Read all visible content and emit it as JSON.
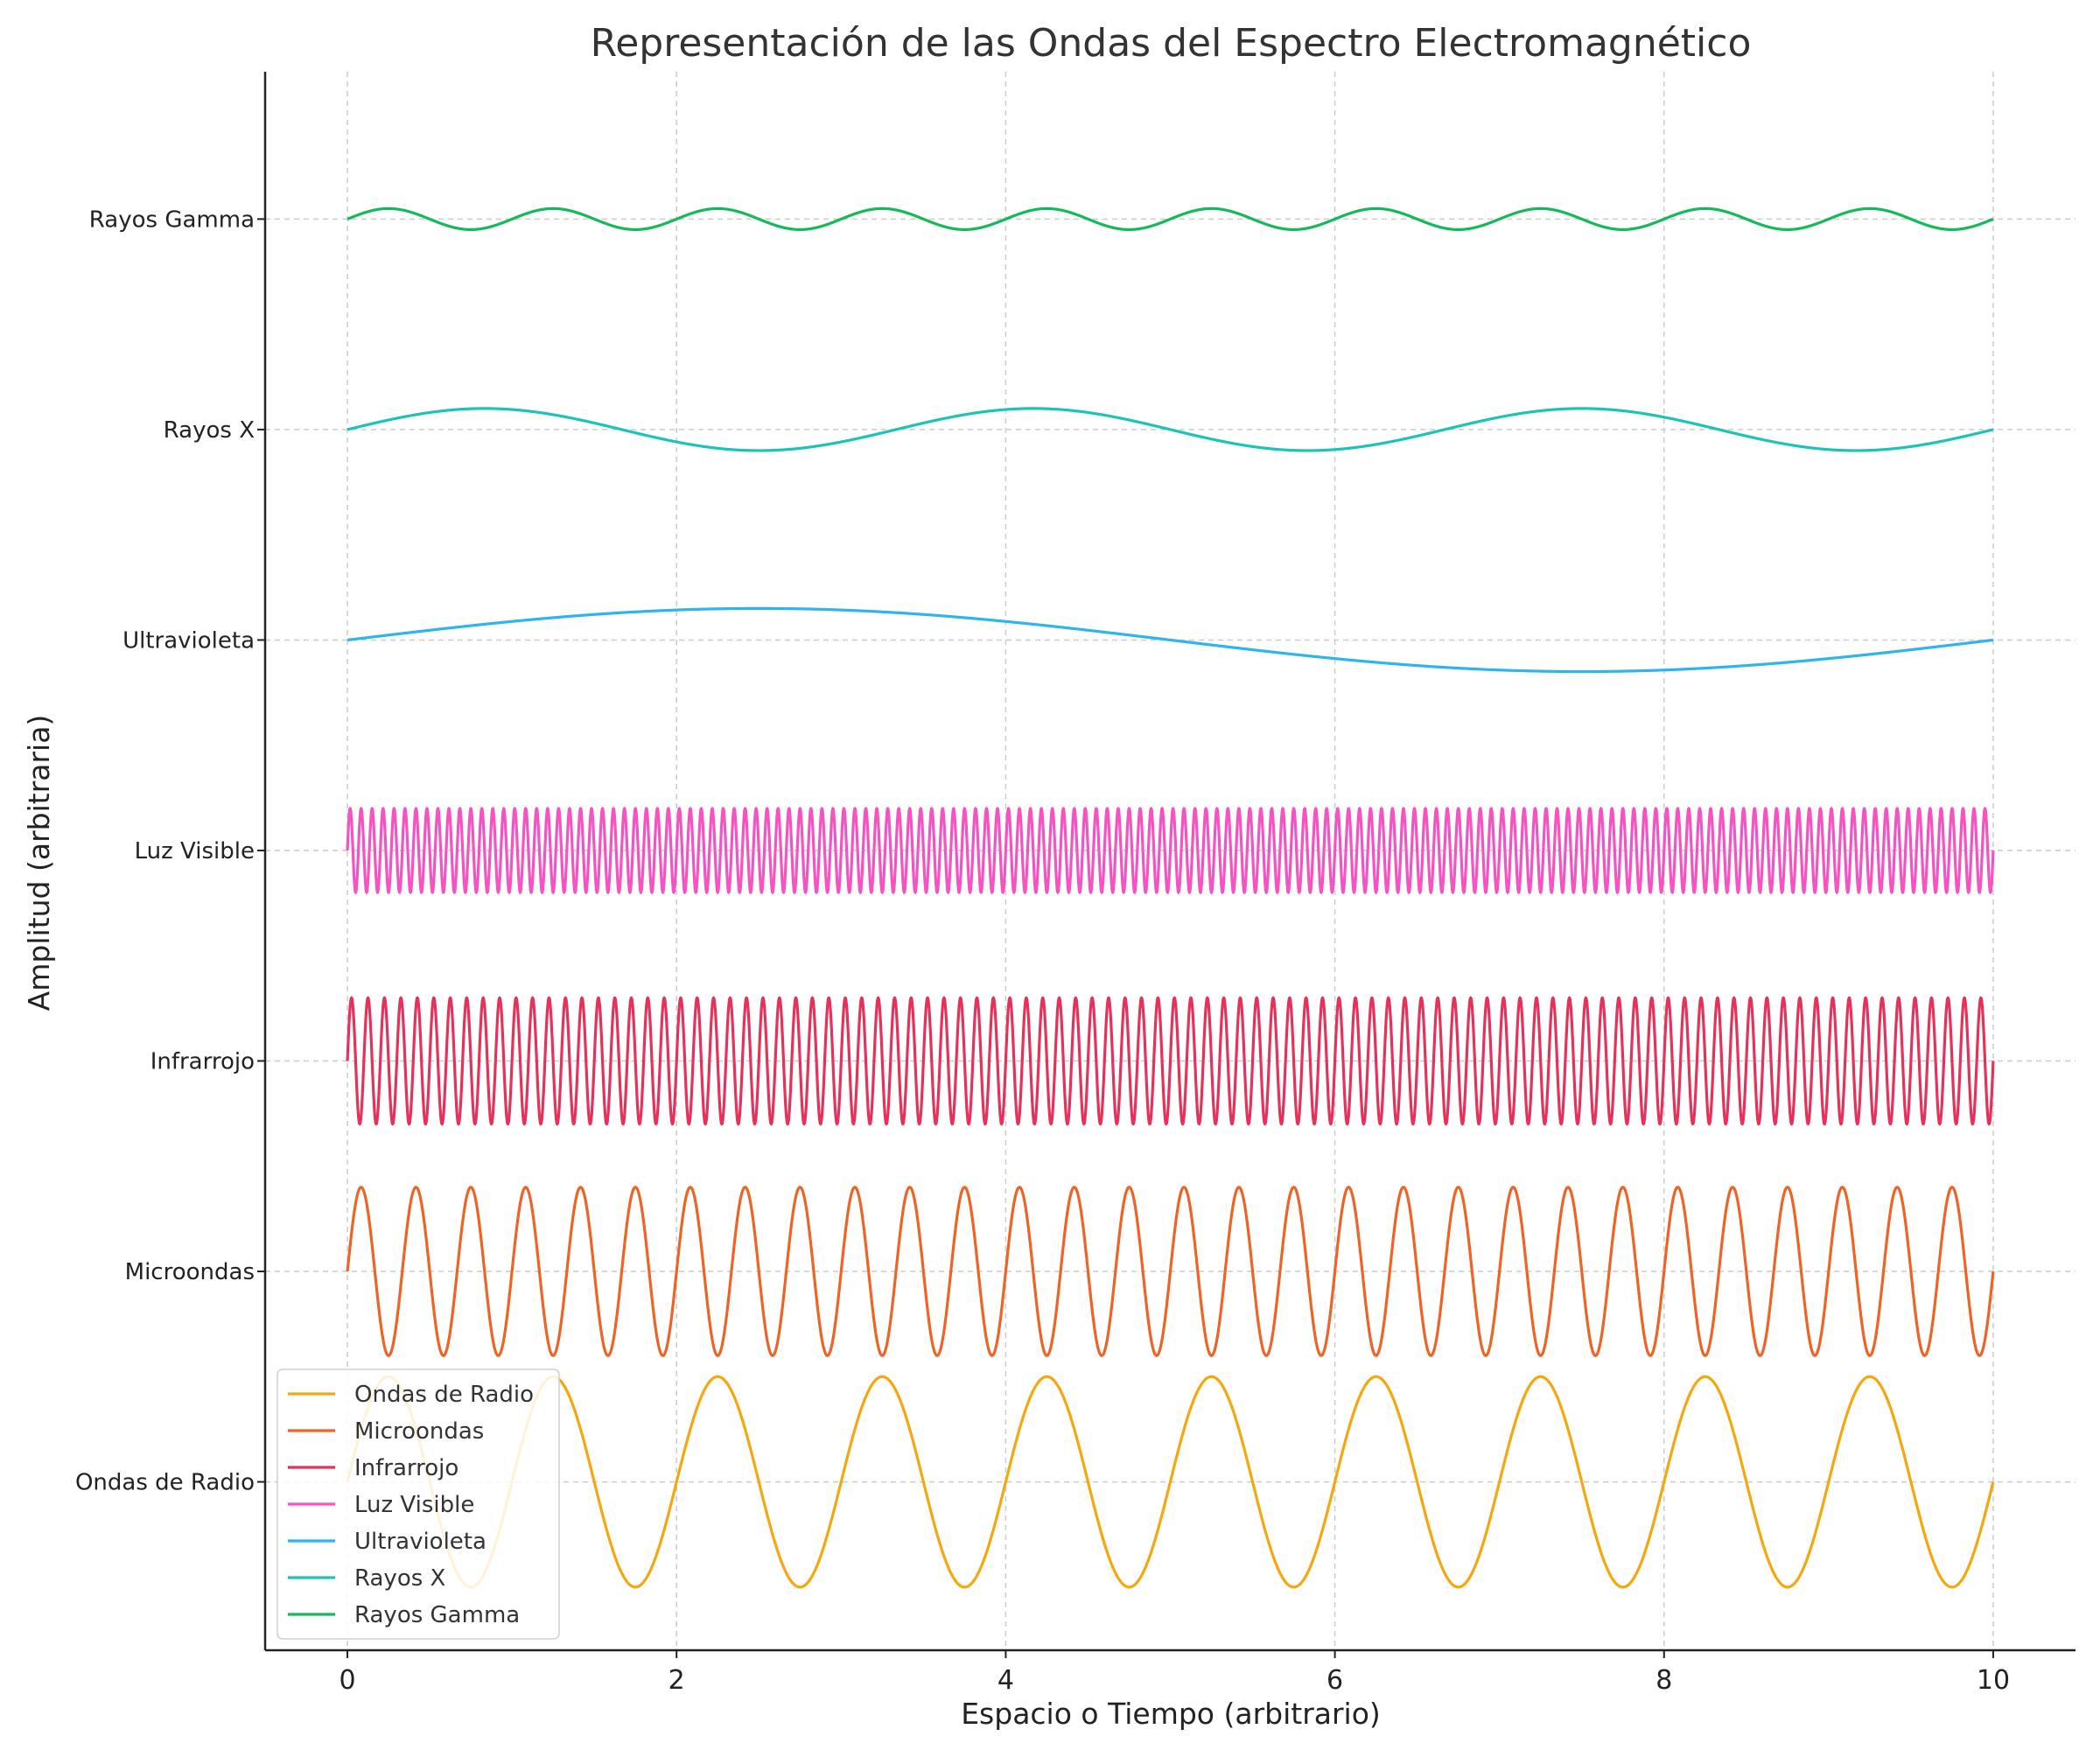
{
  "chart_data": {
    "type": "line",
    "title": "Representación de las Ondas del Espectro Electromagnético",
    "xlabel": "Espacio o Tiempo (arbitrario)",
    "ylabel": "Amplitud (arbitraria)",
    "xlim": [
      -0.5,
      10.5
    ],
    "ylim": [
      -0.8,
      6.7
    ],
    "xticks": [
      0,
      2,
      4,
      6,
      8,
      10
    ],
    "xtick_labels": [
      "0",
      "2",
      "4",
      "6",
      "8",
      "10"
    ],
    "grid": true,
    "legend_position": "lower-left",
    "series": [
      {
        "name": "Ondas de Radio",
        "label": "Ondas de Radio",
        "offset": 0,
        "amplitude": 0.5,
        "frequency": 1,
        "x_start": 0,
        "x_end": 10,
        "color": "#f5a70f"
      },
      {
        "name": "Microondas",
        "label": "Microondas",
        "offset": 1,
        "amplitude": 0.4,
        "frequency": 3,
        "x_start": 0,
        "x_end": 10,
        "color": "#ee6326"
      },
      {
        "name": "Infrarrojo",
        "label": "Infrarrojo",
        "offset": 2,
        "amplitude": 0.3,
        "frequency": 10,
        "x_start": 0,
        "x_end": 10,
        "color": "#e5325b"
      },
      {
        "name": "Luz Visible",
        "label": "Luz Visible",
        "offset": 3,
        "amplitude": 0.2,
        "frequency": 15,
        "x_start": 0,
        "x_end": 10,
        "color": "#f553c1"
      },
      {
        "name": "Ultravioleta",
        "label": "Ultravioleta",
        "offset": 4,
        "amplitude": 0.15,
        "frequency": 0.1,
        "x_start": 0,
        "x_end": 10,
        "color": "#2fb4f0"
      },
      {
        "name": "Rayos X",
        "label": "Rayos X",
        "offset": 5,
        "amplitude": 0.1,
        "frequency": 0.3,
        "x_start": 0,
        "x_end": 10,
        "color": "#1cc4b8"
      },
      {
        "name": "Rayos Gamma",
        "label": "Rayos Gamma",
        "offset": 6,
        "amplitude": 0.05,
        "frequency": 1,
        "x_start": 0,
        "x_end": 10,
        "color": "#16b95a"
      }
    ]
  }
}
